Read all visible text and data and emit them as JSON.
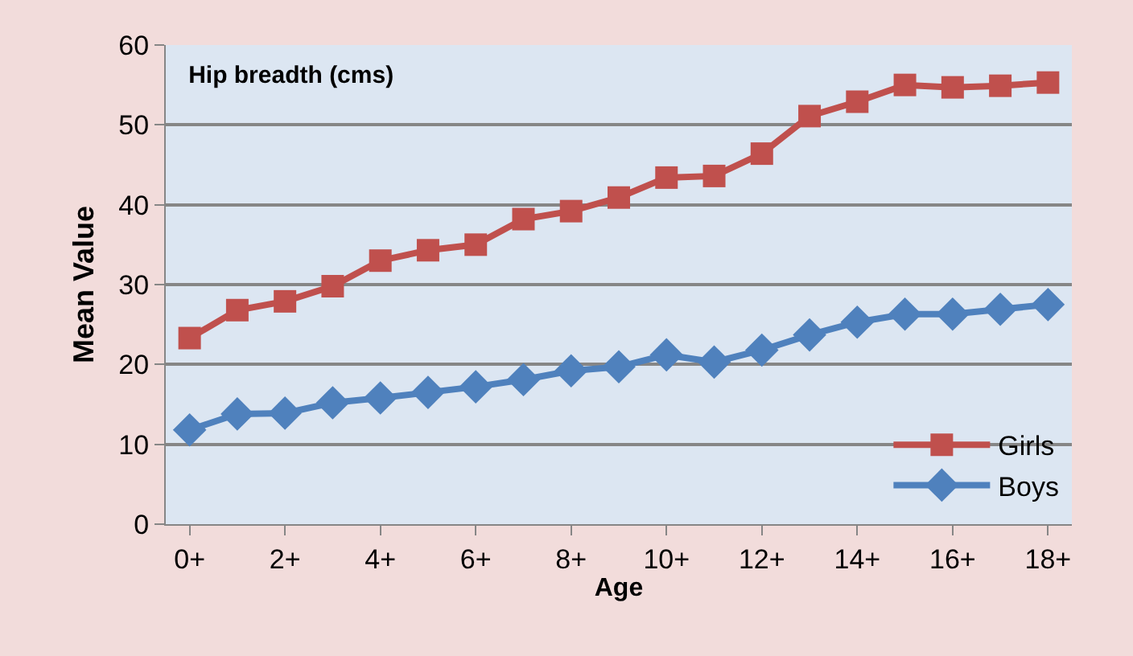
{
  "chart_data": {
    "type": "line",
    "title": "Hip breadth (cms)",
    "xlabel": "Age",
    "ylabel": "Mean Value",
    "categories": [
      "0+",
      null,
      "2+",
      null,
      "4+",
      null,
      "6+",
      null,
      "8+",
      null,
      "10+",
      null,
      "12+",
      null,
      "14+",
      null,
      "16+",
      null,
      "18+"
    ],
    "series": [
      {
        "name": "Girls",
        "color": "#c0504d",
        "marker": "square",
        "values": [
          23.3,
          26.8,
          27.9,
          29.8,
          33.0,
          34.3,
          35.0,
          38.2,
          39.2,
          40.9,
          43.4,
          43.6,
          46.4,
          51.1,
          52.9,
          55.0,
          54.7,
          54.9,
          55.3
        ]
      },
      {
        "name": "Boys",
        "color": "#4f81bd",
        "marker": "diamond",
        "values": [
          11.8,
          13.8,
          13.9,
          15.2,
          15.8,
          16.5,
          17.2,
          18.1,
          19.2,
          19.7,
          21.2,
          20.3,
          21.8,
          23.7,
          25.3,
          26.3,
          26.3,
          26.9,
          27.5
        ]
      }
    ],
    "ylim": [
      0,
      60
    ],
    "yticks": [
      0,
      10,
      20,
      30,
      40,
      50,
      60
    ],
    "grid": "y",
    "legend": "bottom right"
  }
}
